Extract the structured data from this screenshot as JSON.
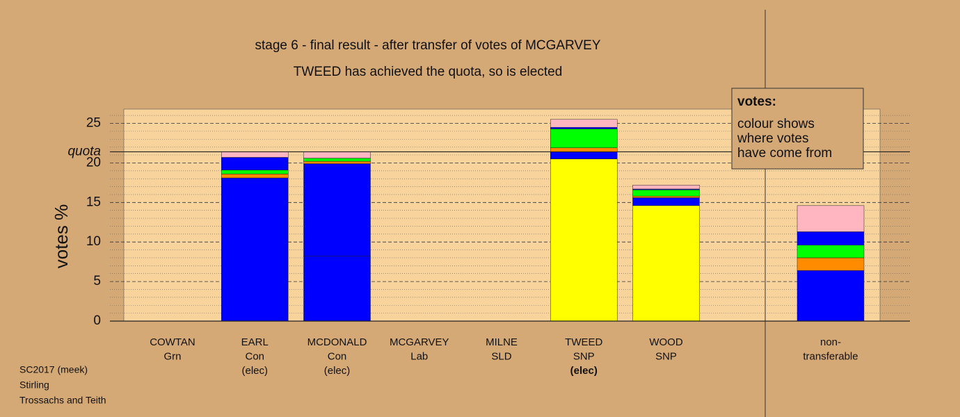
{
  "chart_data": {
    "type": "bar",
    "stacked": true,
    "title": "stage 6 - final result - after transfer of votes of MCGARVEY",
    "subtitle": "TWEED has achieved the quota, so is elected",
    "y_label": "votes %",
    "categories": [
      [
        "COWTAN",
        "Grn"
      ],
      [
        "EARL",
        "Con",
        "(elec)"
      ],
      [
        "MCDONALD",
        "Con",
        "(elec)"
      ],
      [
        "MCGARVEY",
        "Lab"
      ],
      [
        "MILNE",
        "SLD"
      ],
      [
        "TWEED",
        "SNP",
        "(elec)"
      ],
      [
        "WOOD",
        "SNP"
      ],
      null,
      [
        "non-",
        "transferable"
      ]
    ],
    "series": [
      {
        "color": "#ffff00",
        "values": [
          0,
          0,
          0,
          0,
          0,
          20.5,
          14.6,
          null,
          0
        ]
      },
      {
        "color": "#0000ff",
        "values": [
          0,
          18.1,
          8.2,
          0,
          0,
          0,
          0,
          null,
          6.4
        ]
      },
      {
        "color": "#0000ff",
        "values": [
          0,
          0,
          11.7,
          0,
          0,
          0.9,
          1.0,
          null,
          0
        ]
      },
      {
        "color": "#ff8c00",
        "values": [
          0,
          0.5,
          0.3,
          0,
          0,
          0.5,
          0.2,
          null,
          1.6
        ]
      },
      {
        "color": "#00ff00",
        "values": [
          0,
          0.5,
          0.4,
          0,
          0,
          2.4,
          0.8,
          null,
          1.6
        ]
      },
      {
        "color": "#0000ff",
        "values": [
          0,
          1.6,
          0,
          0,
          0,
          0.2,
          0.1,
          null,
          1.7
        ]
      },
      {
        "color": "#ffb6c1",
        "values": [
          0,
          0.7,
          0.8,
          0,
          0,
          1.0,
          0.5,
          null,
          3.3
        ]
      }
    ],
    "ylim": [
      0,
      26.8
    ],
    "yticks": [
      0,
      5,
      10,
      15,
      20,
      25
    ],
    "minor_yticks": [
      1,
      2,
      3,
      4,
      6,
      7,
      8,
      9,
      11,
      12,
      13,
      14,
      16,
      17,
      18,
      19,
      21,
      22,
      23,
      24,
      26
    ],
    "grid": true,
    "quota": {
      "label": "quota",
      "value": 21.4
    },
    "note": {
      "heading": "votes:",
      "lines": [
        "colour shows",
        "where votes",
        "have come from"
      ]
    },
    "footer": [
      "SC2017 (meek)",
      "Stirling",
      "Trossachs and Teith"
    ]
  }
}
